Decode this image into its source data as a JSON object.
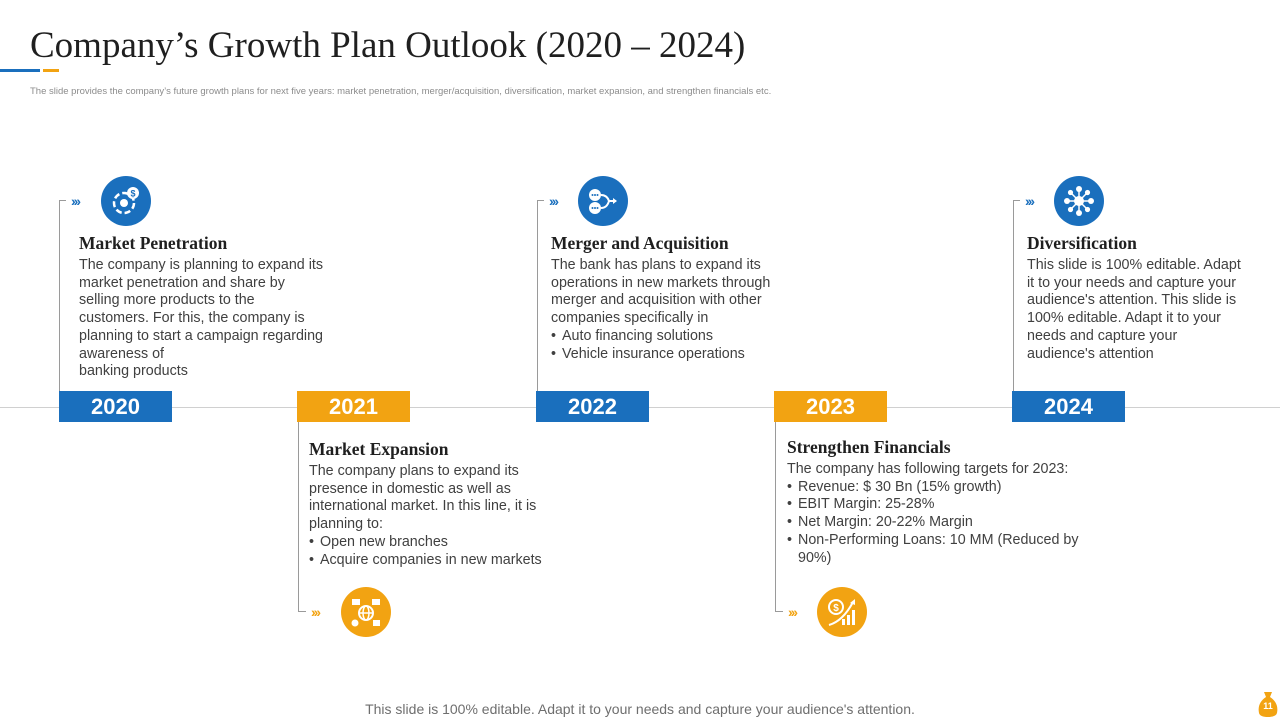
{
  "slide": {
    "title": "Company’s Growth Plan Outlook (2020 – 2024)",
    "subtitle": "The slide provides the company’s future growth plans for next five years: market penetration, merger/acquisition, diversification, market expansion, and strengthen financials etc.",
    "footer": "This slide is 100% editable. Adapt it to your needs and capture your audience's attention.",
    "page_number": "11"
  },
  "colors": {
    "blue": "#1a6fbd",
    "orange": "#f2a312"
  },
  "years": [
    "2020",
    "2021",
    "2022",
    "2023",
    "2024"
  ],
  "stages": [
    {
      "year": "2020",
      "icon": "money-cycle-icon",
      "title": "Market Penetration",
      "body_lines": [
        "The company is planning to expand its",
        "market penetration and share by",
        "selling more products to the",
        "customers. For this, the company is",
        "planning to start a campaign regarding",
        "awareness of",
        "banking products"
      ],
      "bullets": []
    },
    {
      "year": "2021",
      "icon": "global-network-icon",
      "title": "Market Expansion",
      "body_lines": [
        "The company plans to expand its",
        "presence in domestic as well as",
        "international market. In this line, it is",
        "planning to:"
      ],
      "bullets": [
        "Open new branches",
        "Acquire companies in new markets"
      ]
    },
    {
      "year": "2022",
      "icon": "merger-flow-icon",
      "title": "Merger and Acquisition",
      "body_lines": [
        "The bank has plans to expand its",
        "operations in new markets through",
        "merger and acquisition with other",
        "companies specifically in"
      ],
      "bullets": [
        "Auto financing solutions",
        "Vehicle insurance operations"
      ]
    },
    {
      "year": "2023",
      "icon": "growth-chart-icon",
      "title": "Strengthen Financials",
      "body_lines": [
        "The company has following targets for 2023:"
      ],
      "bullets": [
        "Revenue: $ 30 Bn (15% growth)",
        "EBIT Margin: 25-28%",
        "Net Margin: 20-22% Margin",
        "Non-Performing Loans: 10 MM (Reduced by 90%)"
      ]
    },
    {
      "year": "2024",
      "icon": "diversification-hub-icon",
      "title": "Diversification",
      "body_lines": [
        "This slide is 100% editable. Adapt",
        "it to your needs and capture your",
        "audience's attention. This slide is",
        "100% editable. Adapt it to your",
        "needs and capture your",
        "audience's attention"
      ],
      "bullets": []
    }
  ]
}
